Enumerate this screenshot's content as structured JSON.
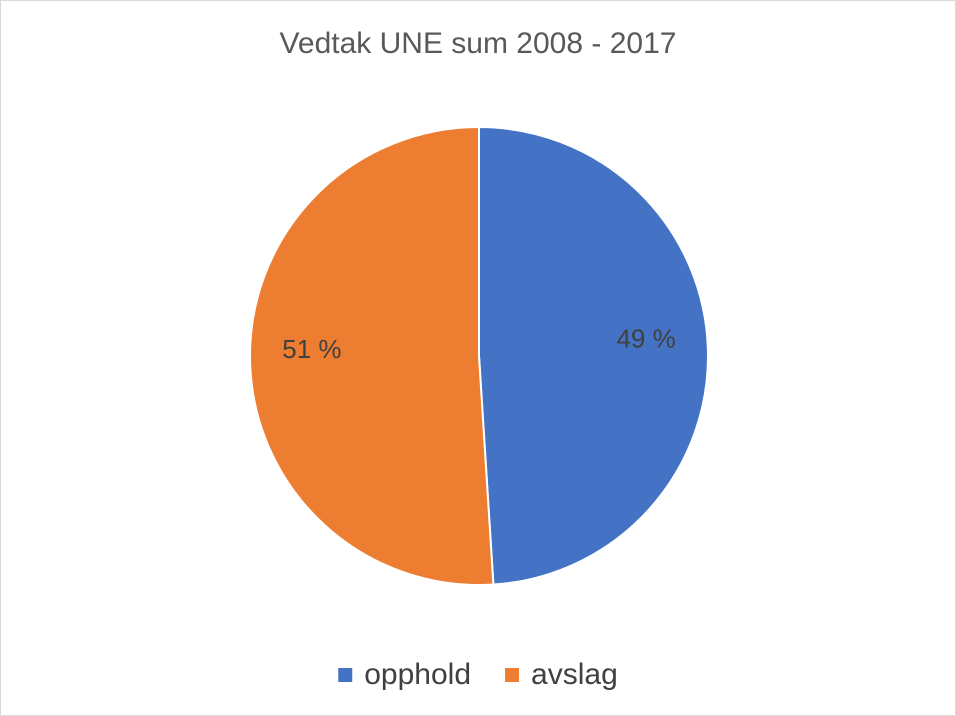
{
  "chart_data": {
    "type": "pie",
    "title": "Vedtak UNE sum 2008 - 2017",
    "categories": [
      "opphold",
      "avslag"
    ],
    "values": [
      49,
      51
    ],
    "value_labels": [
      "49 %",
      "51 %"
    ],
    "colors": [
      "#4472c4",
      "#ed7d31"
    ],
    "legend": "bottom"
  }
}
